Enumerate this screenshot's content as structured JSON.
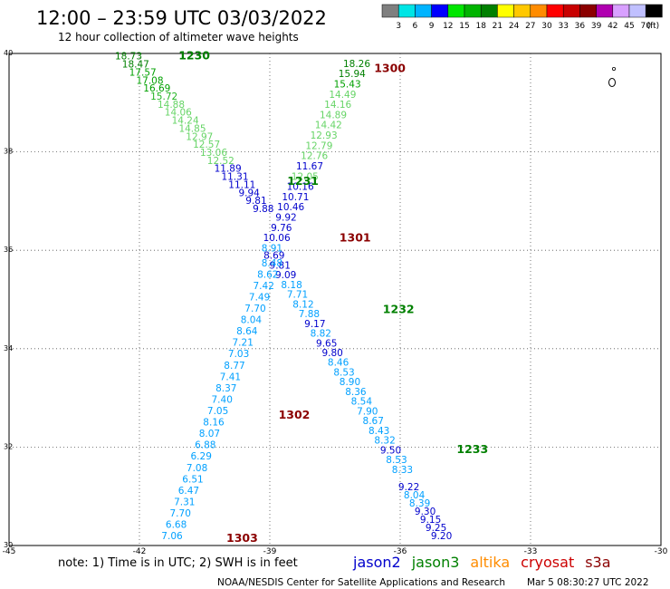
{
  "header": {
    "title": "12:00 – 23:59 UTC 03/03/2022",
    "subtitle": "12 hour collection of altimeter wave heights"
  },
  "colorbar": {
    "colors": [
      "#7f7f7f",
      "#00e5e5",
      "#00b4ff",
      "#0000ff",
      "#00e600",
      "#00b400",
      "#008000",
      "#ffff00",
      "#ffc800",
      "#ff8c00",
      "#ff0000",
      "#c80000",
      "#8b0000",
      "#b000b0",
      "#d8a0ff",
      "#c0c0ff",
      "#000000"
    ],
    "labels": [
      "3",
      "6",
      "9",
      "12",
      "15",
      "18",
      "21",
      "24",
      "27",
      "30",
      "33",
      "36",
      "39",
      "42",
      "45",
      "70"
    ],
    "unit": "(ft)"
  },
  "footer": {
    "note": "note:  1) Time is in UTC;  2) SWH is in feet",
    "credit": "NOAA/NESDIS Center for Satellite Applications and Research",
    "timestamp": "Mar  5 08:30:27 UTC 2022"
  },
  "legend": [
    {
      "name": "jason2",
      "color": "#0000cc"
    },
    {
      "name": "jason3",
      "color": "#008000"
    },
    {
      "name": "altika",
      "color": "#ff8c00"
    },
    {
      "name": "cryosat",
      "color": "#cc0000"
    },
    {
      "name": "s3a",
      "color": "#8b0000"
    }
  ],
  "chart_data": {
    "type": "scatter",
    "xlim": [
      -45,
      -30
    ],
    "ylim": [
      30,
      40
    ],
    "x_ticks": [
      "-45",
      "-42",
      "-39",
      "-36",
      "-33",
      "-30"
    ],
    "y_ticks": [
      "40",
      "38",
      "36",
      "34",
      "32",
      "30"
    ],
    "x_tick_values": [
      -45,
      -42,
      -39,
      -36,
      -33,
      -30
    ],
    "y_tick_values": [
      40,
      38,
      36,
      34,
      32,
      30
    ],
    "grid": true,
    "time_labels": [
      {
        "text": "1230",
        "lon": -41.1,
        "lat": 39.95,
        "color": "#008000"
      },
      {
        "text": "1300",
        "lon": -36.6,
        "lat": 39.7,
        "color": "#8b0000"
      },
      {
        "text": "1231",
        "lon": -38.6,
        "lat": 37.4,
        "color": "#008000"
      },
      {
        "text": "1301",
        "lon": -37.4,
        "lat": 36.25,
        "color": "#8b0000"
      },
      {
        "text": "1232",
        "lon": -36.4,
        "lat": 34.8,
        "color": "#008000"
      },
      {
        "text": "1302",
        "lon": -38.8,
        "lat": 32.65,
        "color": "#8b0000"
      },
      {
        "text": "1233",
        "lon": -34.7,
        "lat": 31.95,
        "color": "#008000"
      },
      {
        "text": "1303",
        "lon": -40.0,
        "lat": 30.15,
        "color": "#8b0000"
      }
    ],
    "series": [
      {
        "name": "jason3",
        "start": [
          -42.25,
          39.95
        ],
        "end": [
          -39.15,
          36.85
        ],
        "values": [
          "18.73",
          "18.47",
          "17.57",
          "17.08",
          "16.69",
          "15.72",
          "14.88",
          "14.06",
          "14.24",
          "14.85",
          "12.97",
          "12.57",
          "13.06",
          "12.52",
          "11.89",
          "11.31",
          "11.11",
          "9.94",
          "9.81",
          "9.88"
        ],
        "colors": [
          "#008000",
          "#008000",
          "#00a000",
          "#00a000",
          "#00a000",
          "#22b422",
          "#66d466",
          "#66d466",
          "#66d466",
          "#66d466",
          "#66d466",
          "#66d466",
          "#66d466",
          "#66d466",
          "#0000cc",
          "#0000cc",
          "#0000cc",
          "#0000cc",
          "#0000cc",
          "#0000cc"
        ]
      },
      {
        "name": "s3a",
        "start": [
          -37.0,
          39.8
        ],
        "end": [
          -38.95,
          36.05
        ],
        "values": [
          "18.26",
          "15.94",
          "15.43",
          "14.49",
          "14.16",
          "14.89",
          "14.42",
          "12.93",
          "12.79",
          "12.76",
          "11.67",
          "12.05",
          "10.16",
          "10.71",
          "10.46",
          "9.92",
          "9.76",
          "10.06",
          "8.91"
        ],
        "colors": [
          "#008000",
          "#008000",
          "#00a000",
          "#66d466",
          "#66d466",
          "#66d466",
          "#66d466",
          "#66d466",
          "#66d466",
          "#66d466",
          "#0000cc",
          "#66d466",
          "#0000cc",
          "#0000cc",
          "#0000cc",
          "#0000cc",
          "#0000cc",
          "#0000cc",
          "#00a0ff"
        ]
      },
      {
        "name": "jason3",
        "start": [
          -38.9,
          35.9
        ],
        "end": [
          -35.95,
          31.55
        ],
        "values": [
          "8.69",
          "9.81",
          "9.09",
          "8.18",
          "7.71",
          "8.12",
          "7.88",
          "9.17",
          "8.82",
          "9.65",
          "9.80",
          "8.46",
          "8.53",
          "8.90",
          "8.36",
          "8.54",
          "7.90",
          "8.67",
          "8.43",
          "8.32",
          "9.50",
          "8.53",
          "8.33"
        ],
        "colors": [
          "#0000cc",
          "#0000cc",
          "#0000cc",
          "#00a0ff",
          "#00a0ff",
          "#00a0ff",
          "#00a0ff",
          "#0000cc",
          "#00a0ff",
          "#0000cc",
          "#0000cc",
          "#00a0ff",
          "#00a0ff",
          "#00a0ff",
          "#00a0ff",
          "#00a0ff",
          "#00a0ff",
          "#00a0ff",
          "#00a0ff",
          "#00a0ff",
          "#0000cc",
          "#00a0ff",
          "#00a0ff"
        ]
      },
      {
        "name": "s3a",
        "start": [
          -38.95,
          35.75
        ],
        "end": [
          -41.25,
          30.2
        ],
        "values": [
          "8.48",
          "8.62",
          "7.42",
          "7.49",
          "7.70",
          "8.04",
          "8.64",
          "7.21",
          "7.03",
          "8.77",
          "7.41",
          "8.37",
          "7.40",
          "7.05",
          "8.16",
          "8.07",
          "6.88",
          "6.29",
          "7.08",
          "6.51",
          "6.47",
          "7.31",
          "7.70",
          "6.68",
          "7.06"
        ],
        "colors": [
          "#00a0ff",
          "#00a0ff",
          "#00a0ff",
          "#00a0ff",
          "#00a0ff",
          "#00a0ff",
          "#00a0ff",
          "#00a0ff",
          "#00a0ff",
          "#00a0ff",
          "#00a0ff",
          "#00a0ff",
          "#00a0ff",
          "#00a0ff",
          "#00a0ff",
          "#00a0ff",
          "#00a0ff",
          "#00a0ff",
          "#00a0ff",
          "#00a0ff",
          "#00a0ff",
          "#00a0ff",
          "#00a0ff",
          "#00a0ff",
          "#00a0ff"
        ]
      },
      {
        "name": "jason3",
        "start": [
          -35.8,
          31.2
        ],
        "end": [
          -35.05,
          30.2
        ],
        "values": [
          "9.22",
          "8.04",
          "8.39",
          "9.30",
          "9.15",
          "9.25",
          "9.20"
        ],
        "colors": [
          "#0000cc",
          "#00a0ff",
          "#00a0ff",
          "#0000cc",
          "#0000cc",
          "#0000cc",
          "#0000cc"
        ]
      }
    ]
  }
}
